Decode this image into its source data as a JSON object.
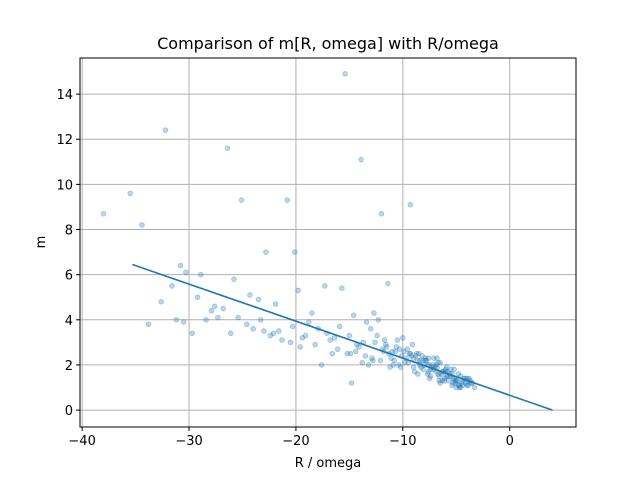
{
  "chart_data": {
    "type": "scatter",
    "title": "Comparison of m[R, omega] with R/omega",
    "xlabel": "R / omega",
    "ylabel": "m",
    "xlim": [
      -40.2,
      6.2
    ],
    "ylim": [
      -0.75,
      15.6
    ],
    "xticks": [
      -40,
      -30,
      -20,
      -10,
      0
    ],
    "xtick_labels": [
      "−40",
      "−30",
      "−20",
      "−10",
      "0"
    ],
    "yticks": [
      0,
      2,
      4,
      6,
      8,
      10,
      12,
      14
    ],
    "ytick_labels": [
      "0",
      "2",
      "4",
      "6",
      "8",
      "10",
      "12",
      "14"
    ],
    "grid": true,
    "colors": {
      "points": "#1f77b4",
      "line": "#1f77b4"
    },
    "series": [
      {
        "type": "scatter",
        "x": [
          -15.4,
          -32.2,
          -26.4,
          -13.9,
          -35.5,
          -38.0,
          -34.4,
          -25.1,
          -20.8,
          -12.0,
          -9.3,
          -22.8,
          -20.1,
          -30.8,
          -28.9,
          -30.3,
          -31.6,
          -29.2,
          -27.6,
          -24.3,
          -17.3,
          -19.8,
          -15.7,
          -11.4,
          -25.8,
          -23.5,
          -21.9,
          -18.5,
          -14.6,
          -12.7,
          -33.8,
          -31.2,
          -32.6,
          -30.5,
          -29.7,
          -27.3,
          -26.1,
          -24.6,
          -23.0,
          -22.4,
          -21.3,
          -20.5,
          -19.4,
          -18.2,
          -17.6,
          -16.8,
          -16.1,
          -15.2,
          -14.4,
          -13.5,
          -12.9,
          -12.1,
          -11.3,
          -10.6,
          -9.8,
          -9.0,
          -8.3,
          -7.5,
          -6.7,
          -6.0,
          -5.2,
          -4.4,
          -3.6,
          -14.8,
          -13.2,
          -11.8,
          -10.9,
          -10.2,
          -9.5,
          -8.8,
          -8.1,
          -7.4,
          -6.9,
          -6.3,
          -5.7,
          -5.1,
          -4.6,
          -4.0,
          -3.3,
          -7.9,
          -7.1,
          -6.5,
          -5.9,
          -5.4,
          -4.8,
          -9.6,
          -8.6,
          -7.7,
          -6.8,
          -6.1,
          -5.5,
          -4.9,
          -4.2,
          -10.5,
          -9.9,
          -9.2,
          -8.4,
          -7.6,
          -6.6,
          -5.8,
          -5.0,
          -12.4,
          -11.6,
          -11.0,
          -10.3,
          -13.7,
          -14.1,
          -15.0,
          -16.4,
          -17.9,
          -18.8,
          -19.1,
          -20.3,
          -21.6,
          -22.1,
          -23.3,
          -24.0,
          -25.4,
          -26.8,
          -27.9,
          -28.4,
          -19.6,
          -17.1,
          -16.6,
          -13.0,
          -11.7,
          -10.8,
          -9.4,
          -8.0,
          -7.3,
          -6.4,
          -5.6,
          -4.5,
          -3.8,
          -10.0,
          -9.1,
          -8.5,
          -7.8,
          -7.2,
          -6.2,
          -5.3,
          -4.7,
          -3.9,
          -14.9,
          -12.3,
          -10.7,
          -9.7,
          -8.9,
          -8.2,
          -7.0,
          -6.6,
          -5.9,
          -5.1,
          -4.3,
          -8.7,
          -7.9,
          -7.5,
          -6.9,
          -6.3,
          -5.6,
          -5.0,
          -4.4,
          -3.7,
          -13.4,
          -12.6,
          -11.5,
          -11.1,
          -10.4,
          -9.3,
          -8.6,
          -7.7,
          -6.8,
          -6.0,
          -5.4,
          -4.8,
          -4.1,
          -3.5,
          -15.9,
          -14.3,
          -13.8,
          -12.8,
          -11.9,
          -11.2,
          -10.1,
          -9.0,
          -8.1,
          -7.4,
          -6.7,
          -6.1,
          -5.3,
          -4.6,
          -3.9,
          -8.4,
          -7.6,
          -7.1,
          -6.5,
          -5.8,
          -5.2,
          -4.7,
          -4.0
        ],
        "y": [
          14.9,
          12.4,
          11.6,
          11.1,
          9.6,
          8.7,
          8.2,
          9.3,
          9.3,
          8.7,
          9.1,
          7.0,
          7.0,
          6.4,
          6.0,
          6.1,
          5.5,
          5.0,
          4.6,
          5.1,
          5.5,
          5.3,
          5.4,
          5.6,
          5.8,
          4.9,
          4.7,
          4.3,
          4.2,
          4.3,
          3.8,
          4.0,
          4.8,
          3.9,
          3.4,
          4.1,
          3.4,
          3.8,
          3.5,
          3.3,
          3.1,
          3.0,
          3.2,
          2.9,
          2.0,
          3.1,
          2.7,
          2.5,
          2.6,
          2.4,
          2.3,
          2.2,
          2.5,
          2.8,
          2.1,
          2.3,
          1.9,
          2.0,
          1.6,
          1.7,
          1.4,
          1.3,
          1.2,
          1.2,
          2.0,
          2.6,
          2.0,
          1.9,
          2.1,
          2.4,
          1.8,
          1.5,
          2.0,
          1.7,
          1.3,
          1.2,
          1.5,
          1.1,
          1.0,
          2.2,
          1.8,
          2.1,
          1.5,
          1.6,
          1.1,
          2.7,
          2.2,
          1.6,
          1.9,
          1.4,
          1.8,
          1.3,
          1.4,
          3.1,
          2.6,
          2.4,
          2.0,
          2.3,
          1.5,
          1.7,
          1.3,
          3.3,
          2.9,
          2.6,
          2.7,
          3.0,
          2.8,
          3.3,
          3.2,
          3.6,
          3.9,
          3.3,
          3.7,
          3.5,
          3.4,
          4.0,
          3.6,
          4.1,
          4.5,
          4.4,
          4.0,
          2.8,
          3.4,
          2.5,
          3.6,
          3.1,
          2.2,
          2.5,
          2.0,
          1.9,
          1.6,
          1.6,
          1.2,
          1.4,
          3.2,
          2.9,
          2.5,
          2.2,
          2.0,
          1.7,
          1.4,
          1.0,
          1.1,
          2.5,
          4.0,
          2.6,
          2.3,
          1.7,
          2.4,
          1.9,
          1.3,
          1.9,
          1.3,
          1.4,
          2.5,
          2.3,
          1.4,
          1.7,
          1.3,
          1.5,
          1.0,
          1.1,
          1.3,
          3.9,
          3.0,
          2.8,
          2.3,
          2.0,
          2.5,
          1.6,
          2.0,
          2.3,
          1.8,
          1.1,
          1.6,
          1.2,
          1.2,
          3.7,
          2.9,
          2.1,
          2.2,
          2.7,
          1.9,
          2.4,
          1.9,
          2.2,
          1.8,
          2.1,
          1.3,
          1.2,
          1.0,
          1.3,
          2.2,
          1.7,
          2.3,
          1.2,
          1.5,
          1.8,
          1.1,
          1.4
        ]
      },
      {
        "type": "line",
        "x": [
          -35.3,
          4.0
        ],
        "y": [
          6.45,
          0.0
        ]
      }
    ]
  }
}
